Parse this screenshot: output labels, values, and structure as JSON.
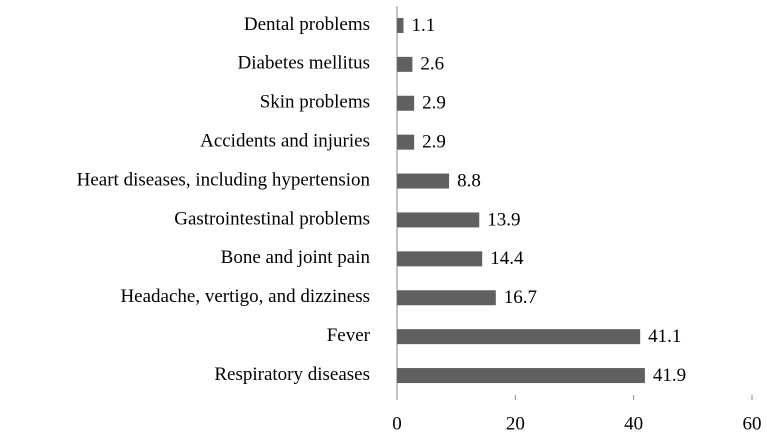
{
  "chart_data": {
    "type": "bar",
    "orientation": "horizontal",
    "categories": [
      "Dental problems",
      "Diabetes mellitus",
      "Skin problems",
      "Accidents and injuries",
      "Heart diseases, including hypertension",
      "Gastrointestinal problems",
      "Bone and joint pain",
      "Headache, vertigo, and dizziness",
      "Fever",
      "Respiratory diseases"
    ],
    "values": [
      1.1,
      2.6,
      2.9,
      2.9,
      8.8,
      13.9,
      14.4,
      16.7,
      41.1,
      41.9
    ],
    "color": "#606060",
    "xlim": [
      0,
      60
    ],
    "xticks": [
      0,
      20,
      40,
      60
    ],
    "grid": false
  }
}
